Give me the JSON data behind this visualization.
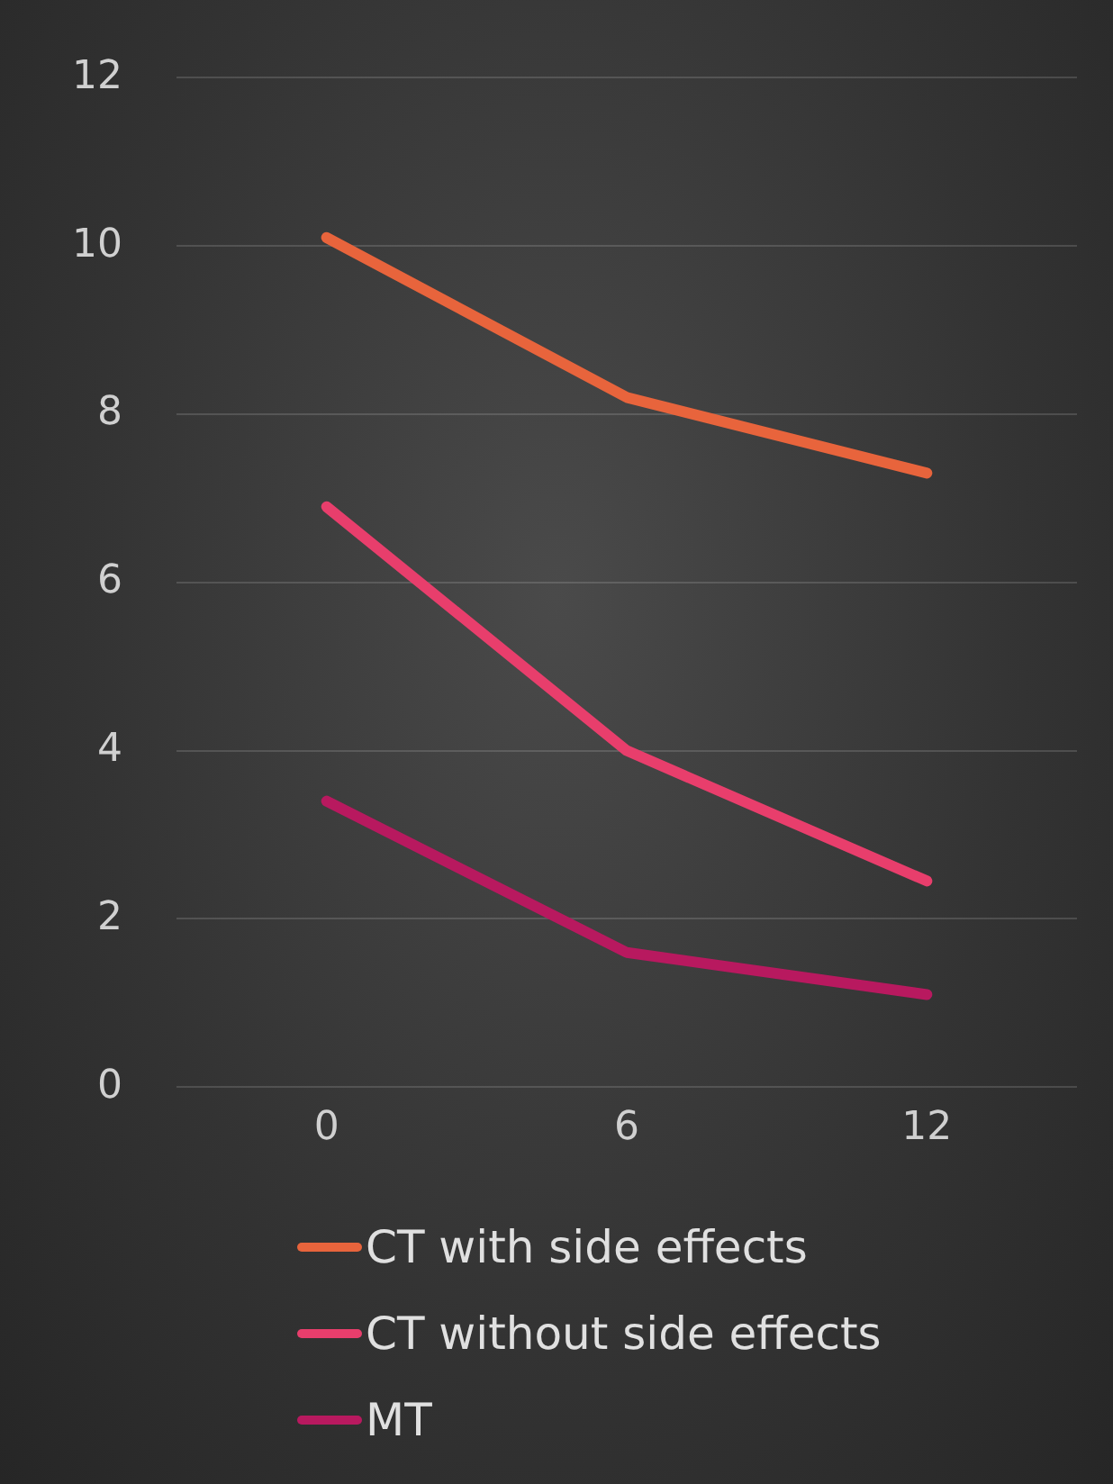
{
  "chart_data": {
    "type": "line",
    "categories": [
      "0",
      "6",
      "12"
    ],
    "series": [
      {
        "name": "CT with side effects",
        "color": "#e8643c",
        "values": [
          10.1,
          8.2,
          7.3
        ]
      },
      {
        "name": "CT without side effects",
        "color": "#e83e6c",
        "values": [
          6.9,
          4.0,
          2.45
        ]
      },
      {
        "name": "MT",
        "color": "#b8195f",
        "values": [
          3.4,
          1.6,
          1.1
        ]
      }
    ],
    "ylim": [
      0,
      12
    ],
    "yticks": [
      0,
      2,
      4,
      6,
      8,
      10,
      12
    ],
    "grid": "y",
    "legend": "bottom",
    "marker": "none",
    "line_style": "solid"
  }
}
